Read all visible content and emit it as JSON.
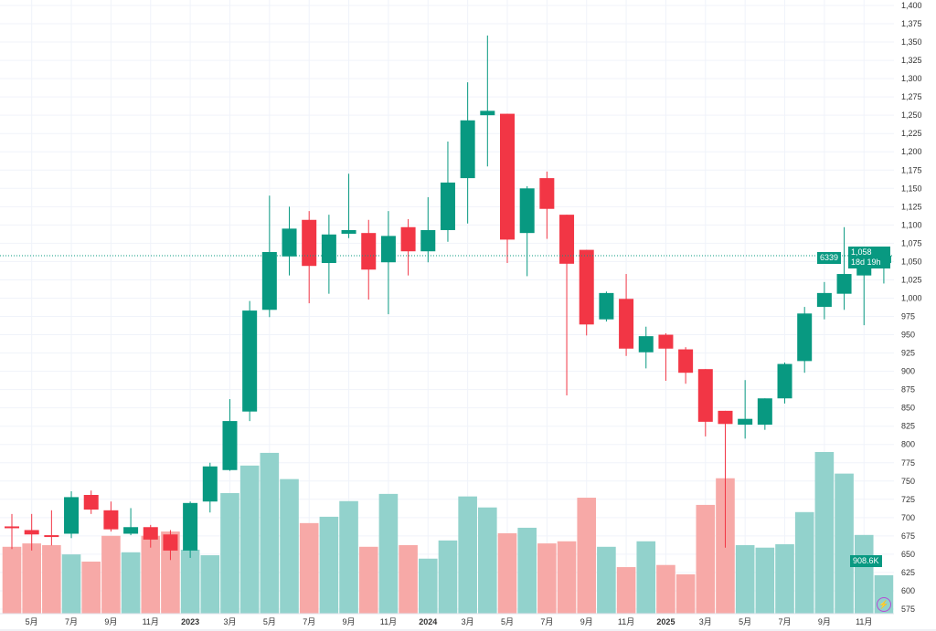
{
  "chart_data": {
    "type": "candlestick",
    "interval": "monthly",
    "x": [
      "2022-04",
      "2022-05",
      "2022-06",
      "2022-07",
      "2022-08",
      "2022-09",
      "2022-10",
      "2022-11",
      "2022-12",
      "2023-01",
      "2023-02",
      "2023-03",
      "2023-04",
      "2023-05",
      "2023-06",
      "2023-07",
      "2023-08",
      "2023-09",
      "2023-10",
      "2023-11",
      "2023-12",
      "2024-01",
      "2024-02",
      "2024-03",
      "2024-04",
      "2024-05",
      "2024-06",
      "2024-07",
      "2024-08",
      "2024-09",
      "2024-10",
      "2024-11",
      "2024-12",
      "2025-01",
      "2025-02",
      "2025-03",
      "2025-04",
      "2025-05",
      "2025-06",
      "2025-07",
      "2025-08",
      "2025-09",
      "2025-10",
      "2025-11",
      "2025-12"
    ],
    "open": [
      688,
      683,
      676,
      678,
      731,
      710,
      678,
      687,
      677,
      655,
      722,
      765,
      845,
      984,
      1057,
      1107,
      1048,
      1088,
      1089,
      1049,
      1097,
      1064,
      1093,
      1164,
      1250,
      1252,
      1089,
      1164,
      1114,
      1066,
      971,
      999,
      926,
      950,
      930,
      903,
      846,
      827,
      827,
      863,
      914,
      988,
      1006,
      1031,
      1048
    ],
    "high": [
      705,
      705,
      710,
      736,
      737,
      722,
      713,
      690,
      683,
      722,
      775,
      862,
      996,
      1140,
      1125,
      1119,
      1114,
      1170,
      1107,
      1119,
      1108,
      1138,
      1214,
      1295,
      1359,
      1252,
      1153,
      1173,
      1114,
      1066,
      1009,
      1033,
      961,
      952,
      933,
      903,
      846,
      888,
      863,
      912,
      988,
      1022,
      1097,
      1056,
      1068
    ],
    "low": [
      657,
      655,
      662,
      672,
      705,
      681,
      676,
      659,
      642,
      645,
      707,
      764,
      832,
      974,
      1031,
      993,
      1006,
      1082,
      998,
      978,
      1031,
      1049,
      1077,
      1102,
      1180,
      1048,
      1030,
      1081,
      867,
      949,
      968,
      921,
      904,
      887,
      883,
      811,
      659,
      808,
      820,
      856,
      898,
      971,
      984,
      963,
      1020
    ],
    "close": [
      686,
      677,
      674,
      728,
      711,
      684,
      687,
      670,
      655,
      720,
      770,
      832,
      983,
      1063,
      1095,
      1044,
      1087,
      1093,
      1039,
      1085,
      1064,
      1093,
      1158,
      1243,
      1256,
      1080,
      1150,
      1122,
      1047,
      964,
      1007,
      931,
      948,
      931,
      898,
      831,
      828,
      835,
      863,
      910,
      979,
      1007,
      1033,
      1048,
      1058
    ],
    "volume": [
      1580000,
      1660000,
      1620000,
      1400000,
      1230000,
      1840000,
      1450000,
      1840000,
      1940000,
      1510000,
      1380000,
      2850000,
      3500000,
      3800000,
      3180000,
      2140000,
      2290000,
      2660000,
      1580000,
      2830000,
      1620000,
      1300000,
      1730000,
      2770000,
      2510000,
      1900000,
      2030000,
      1660000,
      1710000,
      2740000,
      1580000,
      1100000,
      1710000,
      1150000,
      930000,
      2570000,
      3200000,
      1620000,
      1560000,
      1640000,
      2400000,
      3820000,
      3310000,
      1860000,
      908600
    ],
    "ylim": [
      575,
      1400
    ],
    "y_ticks": [
      "575",
      "600",
      "625",
      "650",
      "675",
      "700",
      "725",
      "750",
      "775",
      "800",
      "825",
      "850",
      "875",
      "900",
      "925",
      "950",
      "975",
      "1,000",
      "1,025",
      "1,050",
      "1,075",
      "1,100",
      "1,125",
      "1,150",
      "1,175",
      "1,200",
      "1,225",
      "1,250",
      "1,275",
      "1,300",
      "1,325",
      "1,350",
      "1,375",
      "1,400"
    ],
    "x_ticks": [
      {
        "index": 1,
        "label": "5月",
        "year": false
      },
      {
        "index": 3,
        "label": "7月",
        "year": false
      },
      {
        "index": 5,
        "label": "9月",
        "year": false
      },
      {
        "index": 7,
        "label": "11月",
        "year": false
      },
      {
        "index": 9,
        "label": "2023",
        "year": true
      },
      {
        "index": 11,
        "label": "3月",
        "year": false
      },
      {
        "index": 13,
        "label": "5月",
        "year": false
      },
      {
        "index": 15,
        "label": "7月",
        "year": false
      },
      {
        "index": 17,
        "label": "9月",
        "year": false
      },
      {
        "index": 19,
        "label": "11月",
        "year": false
      },
      {
        "index": 21,
        "label": "2024",
        "year": true
      },
      {
        "index": 23,
        "label": "3月",
        "year": false
      },
      {
        "index": 25,
        "label": "5月",
        "year": false
      },
      {
        "index": 27,
        "label": "7月",
        "year": false
      },
      {
        "index": 29,
        "label": "9月",
        "year": false
      },
      {
        "index": 31,
        "label": "11月",
        "year": false
      },
      {
        "index": 33,
        "label": "2025",
        "year": true
      },
      {
        "index": 35,
        "label": "3月",
        "year": false
      },
      {
        "index": 37,
        "label": "5月",
        "year": false
      },
      {
        "index": 39,
        "label": "7月",
        "year": false
      },
      {
        "index": 41,
        "label": "9月",
        "year": false
      },
      {
        "index": 43,
        "label": "11月",
        "year": false
      }
    ],
    "grid": true,
    "last_price": 1058,
    "colors": {
      "up": "#089981",
      "down": "#f23645",
      "vol_up": "#92d2cc",
      "vol_down": "#f7a9a7",
      "grid": "#f0f3fa"
    }
  },
  "badges": {
    "bar_count": "6339",
    "last_price": "1,058",
    "countdown": "18d 19h",
    "volume": "908.6K"
  },
  "icons": {
    "bolt": "lightning-icon"
  }
}
